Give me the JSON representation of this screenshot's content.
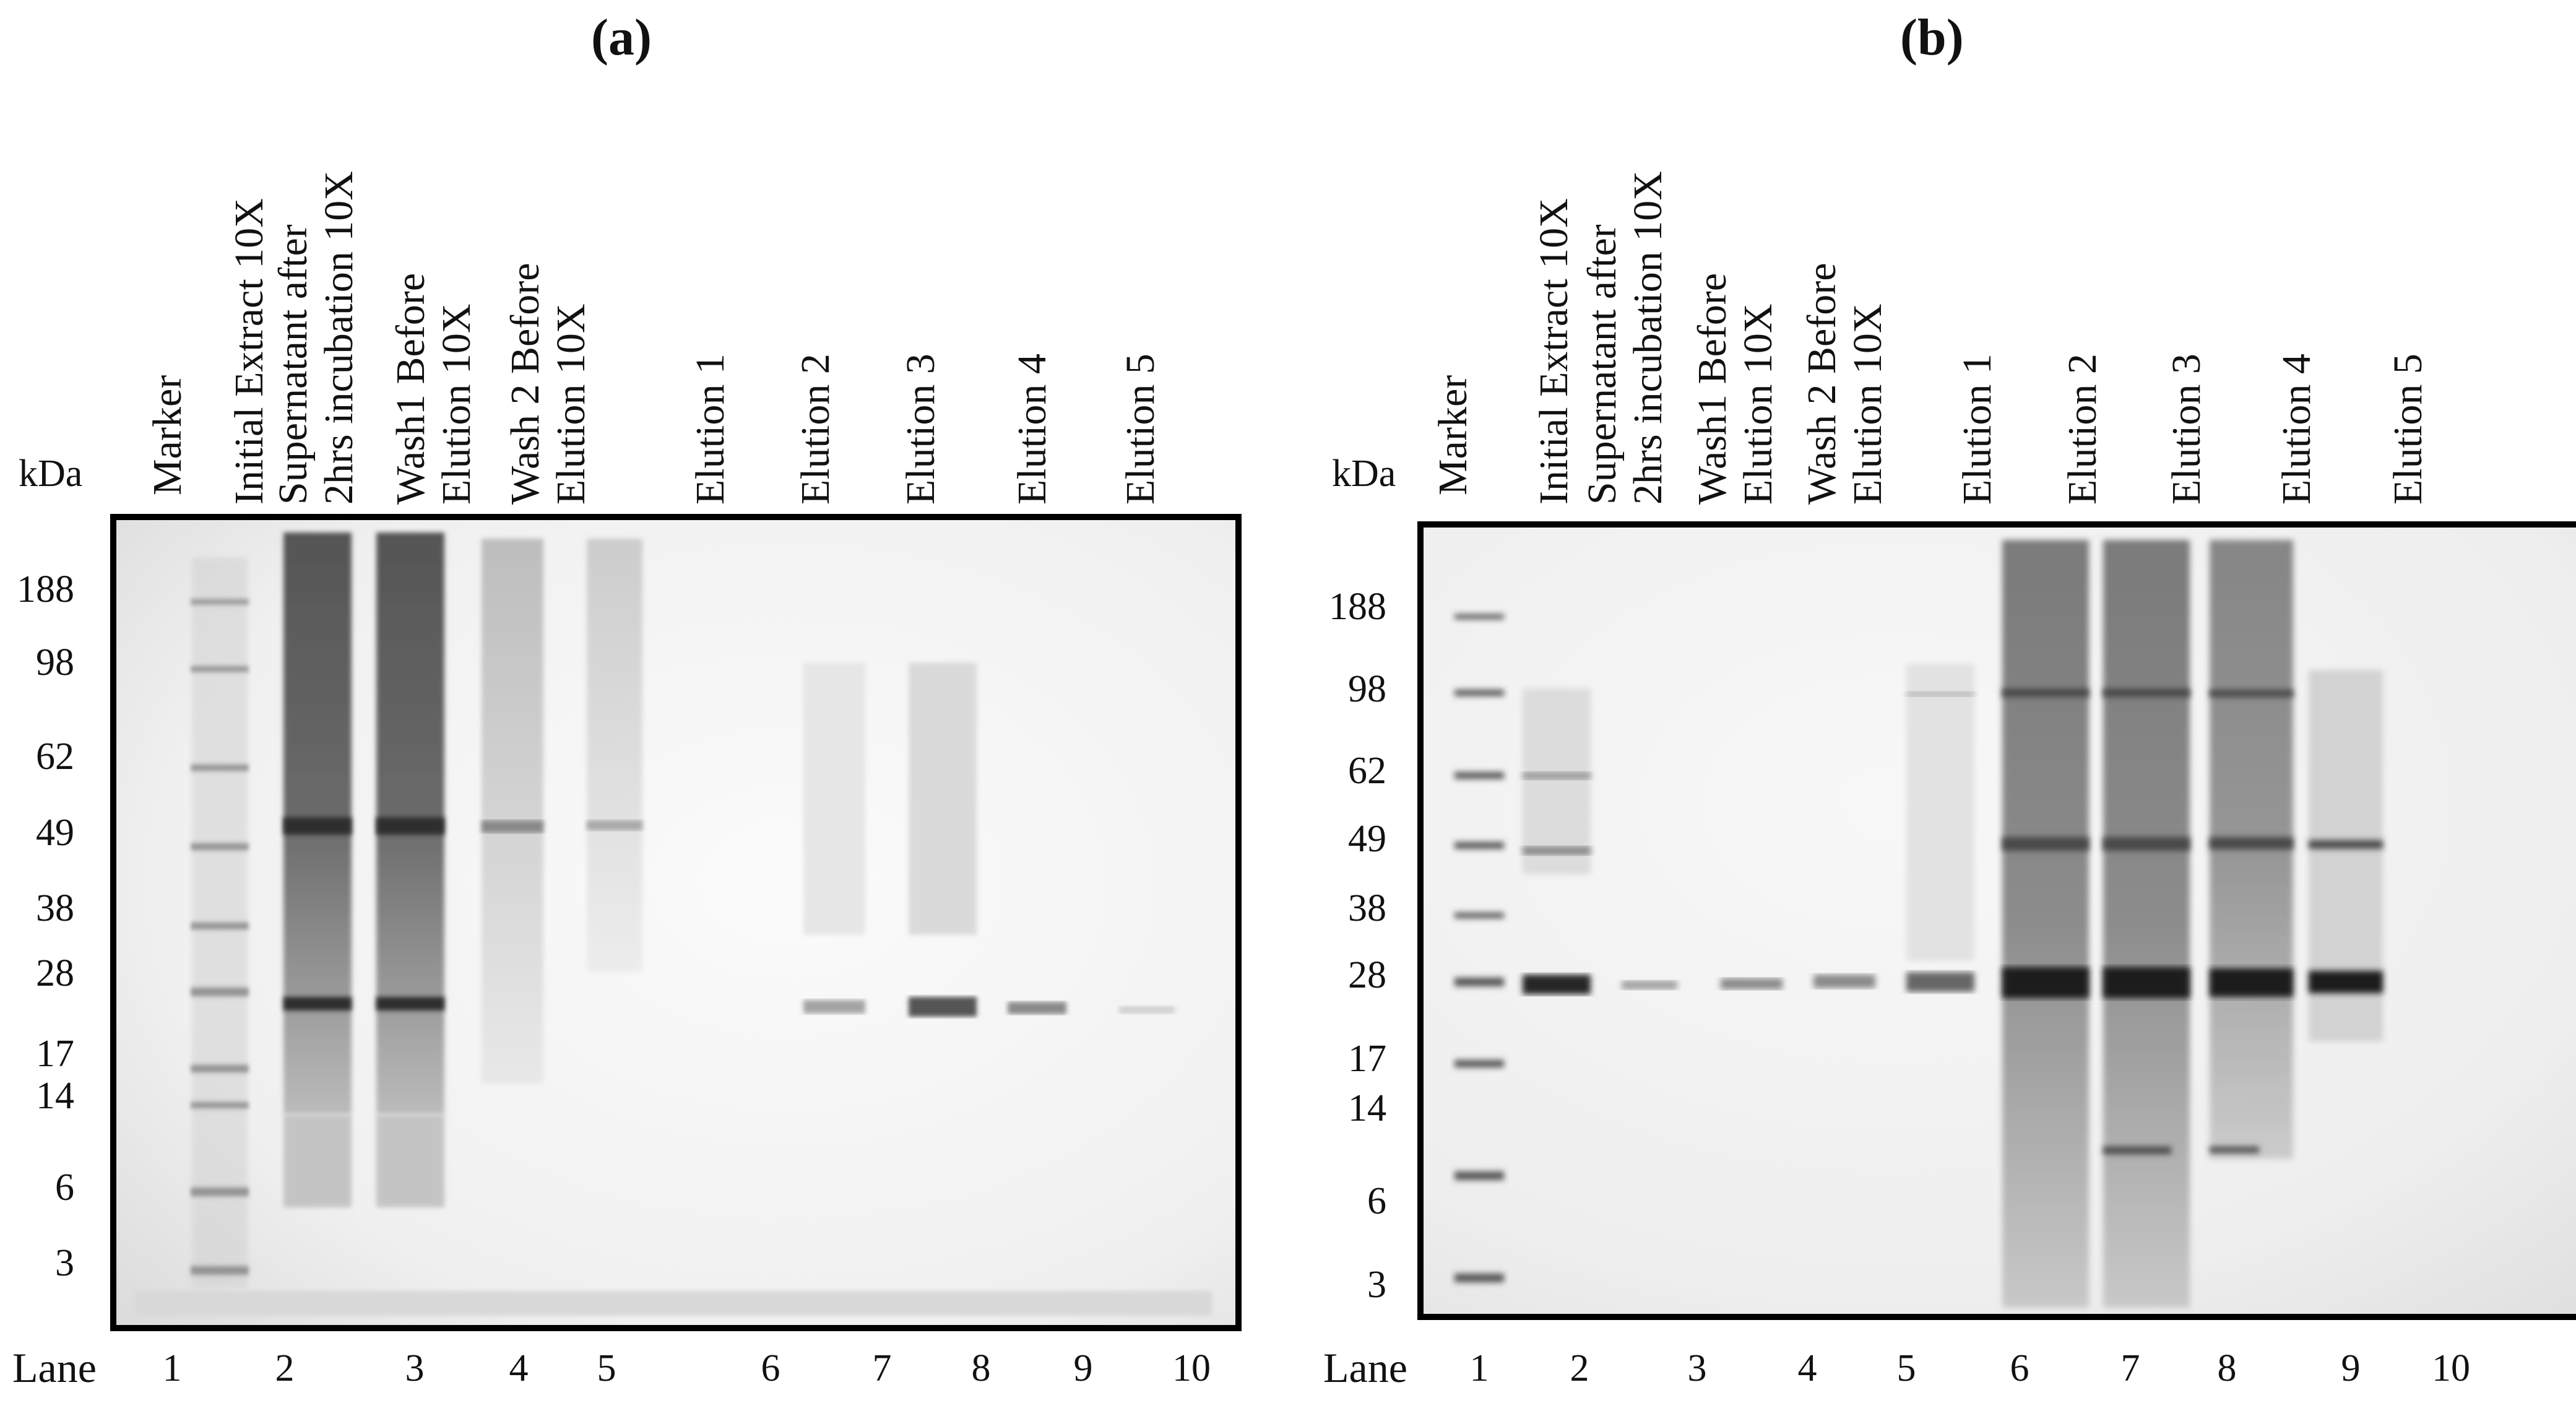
{
  "panels": [
    {
      "letter": "(a)",
      "kda_label": "kDa",
      "lane_header": "Lane",
      "lane_labels": [
        [
          "Marker"
        ],
        [
          "Initial Extract 10X"
        ],
        [
          "Supernatant after",
          "2hrs incubation 10X"
        ],
        [
          "Wash1 Before",
          "Elution 10X"
        ],
        [
          "Wash 2 Before",
          "Elution 10X"
        ],
        [
          "Elution 1"
        ],
        [
          "Elution 2"
        ],
        [
          "Elution 3"
        ],
        [
          "Elution 4"
        ],
        [
          "Elution 5"
        ]
      ],
      "lane_numbers": [
        "1",
        "2",
        "3",
        "4",
        "5",
        "6",
        "7",
        "8",
        "9",
        "10"
      ],
      "mw_markers": [
        "188",
        "98",
        "62",
        "49",
        "38",
        "28",
        "17",
        "14",
        "6",
        "3"
      ]
    },
    {
      "letter": "(b)",
      "kda_label": "kDa",
      "lane_header": "Lane",
      "lane_labels": [
        [
          "Marker"
        ],
        [
          "Initial Extract 10X"
        ],
        [
          "Supernatant after",
          "2hrs incubation 10X"
        ],
        [
          "Wash1 Before",
          "Elution 10X"
        ],
        [
          "Wash 2 Before",
          "Elution 10X"
        ],
        [
          "Elution 1"
        ],
        [
          "Elution 2"
        ],
        [
          "Elution 3"
        ],
        [
          "Elution 4"
        ],
        [
          "Elution 5"
        ]
      ],
      "lane_numbers": [
        "1",
        "2",
        "3",
        "4",
        "5",
        "6",
        "7",
        "8",
        "9",
        "10"
      ],
      "mw_markers": [
        "188",
        "98",
        "62",
        "49",
        "38",
        "28",
        "17",
        "14",
        "6",
        "3"
      ]
    }
  ]
}
